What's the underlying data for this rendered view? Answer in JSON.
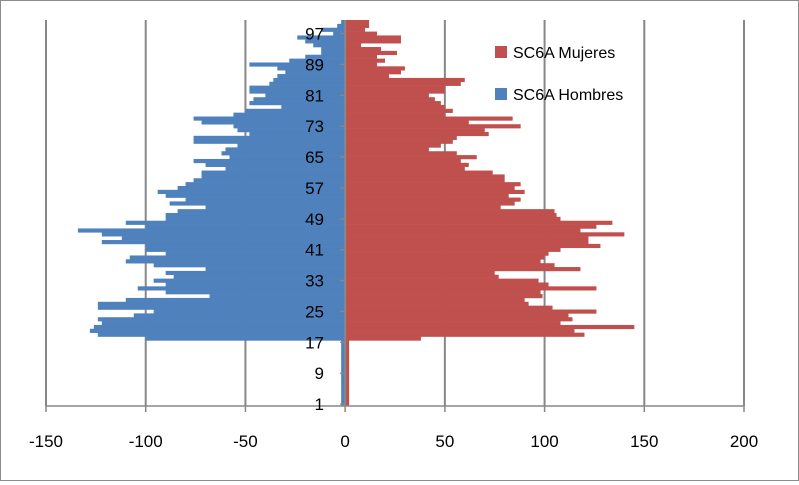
{
  "chart_data": {
    "type": "bar",
    "orientation": "horizontal",
    "xlim": [
      -150,
      200
    ],
    "x_ticks": [
      -150,
      -100,
      -50,
      0,
      50,
      100,
      150,
      200
    ],
    "x_tick_labels": [
      "-150",
      "-100",
      "-50",
      "0",
      "50",
      "100",
      "150",
      "200"
    ],
    "y_ticks": [
      1,
      9,
      17,
      25,
      33,
      41,
      49,
      57,
      65,
      73,
      81,
      89,
      97
    ],
    "y_tick_labels": [
      "1",
      "9",
      "17",
      "25",
      "33",
      "41",
      "49",
      "57",
      "65",
      "73",
      "81",
      "89",
      "97"
    ],
    "grid": "vertical major gridlines",
    "legend_position": "top-right",
    "categories": [
      1,
      2,
      3,
      4,
      5,
      6,
      7,
      8,
      9,
      10,
      11,
      12,
      13,
      14,
      15,
      16,
      17,
      18,
      19,
      20,
      21,
      22,
      23,
      24,
      25,
      26,
      27,
      28,
      29,
      30,
      31,
      32,
      33,
      34,
      35,
      36,
      37,
      38,
      39,
      40,
      41,
      42,
      43,
      44,
      45,
      46,
      47,
      48,
      49,
      50,
      51,
      52,
      53,
      54,
      55,
      56,
      57,
      58,
      59,
      60,
      61,
      62,
      63,
      64,
      65,
      66,
      67,
      68,
      69,
      70,
      71,
      72,
      73,
      74,
      75,
      76,
      77,
      78,
      79,
      80,
      81,
      82,
      83,
      84,
      85,
      86,
      87,
      88,
      89,
      90,
      91,
      92,
      93,
      94,
      95,
      96,
      97,
      98,
      99,
      100
    ],
    "series": [
      {
        "name": "SC6A Mujeres",
        "color": "#c0504d",
        "values": [
          2,
          2,
          2,
          2,
          2,
          2,
          2,
          2,
          2,
          2,
          2,
          2,
          2,
          2,
          2,
          2,
          2,
          38,
          120,
          115,
          145,
          108,
          114,
          112,
          126,
          104,
          92,
          90,
          99,
          98,
          126,
          102,
          97,
          77,
          75,
          118,
          105,
          98,
          100,
          102,
          108,
          128,
          122,
          122,
          140,
          118,
          126,
          134,
          108,
          106,
          105,
          78,
          85,
          88,
          82,
          90,
          85,
          88,
          80,
          80,
          74,
          60,
          62,
          58,
          66,
          56,
          42,
          48,
          54,
          56,
          72,
          70,
          88,
          62,
          84,
          50,
          54,
          50,
          48,
          45,
          42,
          50,
          50,
          58,
          60,
          22,
          28,
          30,
          16,
          20,
          16,
          26,
          18,
          8,
          28,
          28,
          16,
          10,
          12,
          12
        ]
      },
      {
        "name": "SC6A Hombres",
        "color": "#4f81bd",
        "values": [
          -2,
          -2,
          -2,
          -2,
          -2,
          -2,
          -2,
          -2,
          -2,
          -2,
          -2,
          -2,
          -2,
          -2,
          -2,
          -2,
          -2,
          -100,
          -124,
          -128,
          -126,
          -122,
          -124,
          -106,
          -96,
          -124,
          -124,
          -110,
          -68,
          -90,
          -104,
          -90,
          -96,
          -86,
          -90,
          -70,
          -96,
          -110,
          -108,
          -90,
          -100,
          -100,
          -122,
          -112,
          -122,
          -134,
          -100,
          -110,
          -90,
          -90,
          -84,
          -70,
          -88,
          -80,
          -90,
          -94,
          -84,
          -80,
          -76,
          -72,
          -72,
          -60,
          -70,
          -76,
          -58,
          -62,
          -60,
          -54,
          -76,
          -76,
          -48,
          -54,
          -56,
          -72,
          -76,
          -56,
          -50,
          -32,
          -48,
          -46,
          -40,
          -48,
          -48,
          -38,
          -36,
          -34,
          -30,
          -34,
          -48,
          -28,
          -20,
          -12,
          -12,
          -16,
          -20,
          -24,
          -6,
          -12,
          -4,
          -2
        ]
      }
    ]
  }
}
